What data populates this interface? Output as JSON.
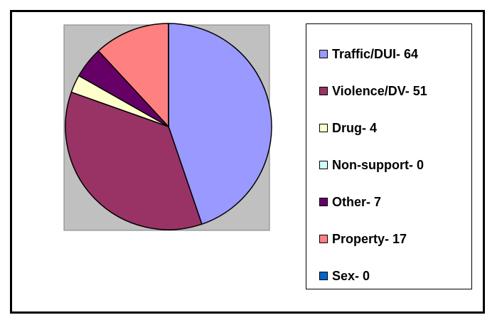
{
  "chart_data": {
    "type": "pie",
    "title": "",
    "legend_position": "right",
    "plot_background": "#c0c0c0",
    "slices": [
      {
        "label": "Traffic/DUI- 64",
        "category": "Traffic/DUI",
        "value": 64,
        "color": "#9999ff"
      },
      {
        "label": "Violence/DV- 51",
        "category": "Violence/DV",
        "value": 51,
        "color": "#993366"
      },
      {
        "label": "Drug- 4",
        "category": "Drug",
        "value": 4,
        "color": "#ffffcc"
      },
      {
        "label": "Non-support- 0",
        "category": "Non-support",
        "value": 0,
        "color": "#ccffff"
      },
      {
        "label": "Other- 7",
        "category": "Other",
        "value": 7,
        "color": "#660066"
      },
      {
        "label": "Property- 17",
        "category": "Property",
        "value": 17,
        "color": "#ff8080"
      },
      {
        "label": "Sex- 0",
        "category": "Sex",
        "value": 0,
        "color": "#0066cc"
      }
    ]
  }
}
